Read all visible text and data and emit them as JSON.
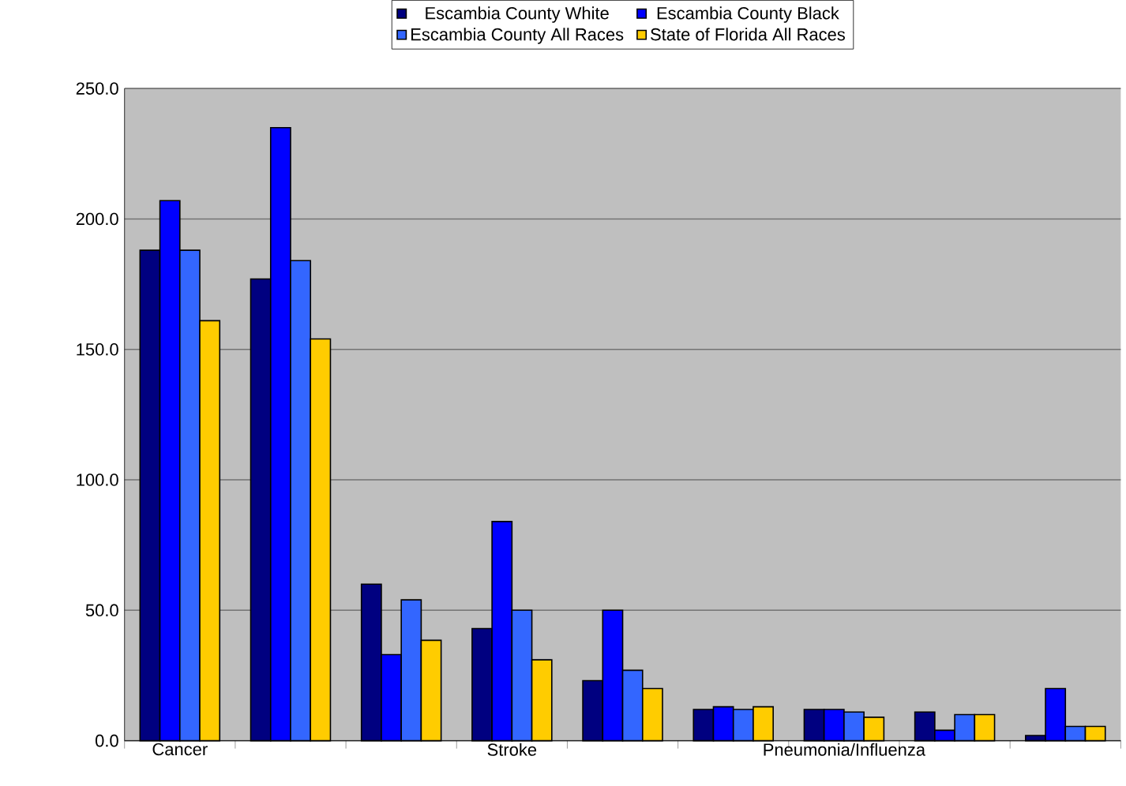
{
  "chart_data": {
    "type": "bar",
    "categories": [
      "Cancer",
      null,
      null,
      "Stroke",
      null,
      null,
      "Pneumonia/Influenza",
      null,
      null
    ],
    "series": [
      {
        "name": "Escambia County White",
        "color": "#000080",
        "values": [
          188,
          177,
          60,
          43,
          23,
          12,
          12,
          11,
          2
        ]
      },
      {
        "name": "Escambia County Black",
        "color": "#0000ff",
        "values": [
          207,
          235,
          33,
          84,
          50,
          13,
          12,
          4,
          20
        ]
      },
      {
        "name": "Escambia County All Races",
        "color": "#3366ff",
        "values": [
          188,
          184,
          54,
          50,
          27,
          12,
          11,
          10,
          5.5
        ]
      },
      {
        "name": "State of Florida All Races",
        "color": "#ffcc00",
        "values": [
          161,
          154,
          38.5,
          31,
          20,
          13,
          9,
          10,
          5.5
        ]
      }
    ],
    "ylim": [
      0,
      250
    ],
    "yticks": [
      {
        "value": 0,
        "label": "0.0"
      },
      {
        "value": 50,
        "label": "50.0"
      },
      {
        "value": 100,
        "label": "100.0"
      },
      {
        "value": 150,
        "label": "150.0"
      },
      {
        "value": 200,
        "label": "200.0"
      },
      {
        "value": 250,
        "label": "250.0"
      }
    ],
    "grid": "y",
    "legend": "top"
  }
}
